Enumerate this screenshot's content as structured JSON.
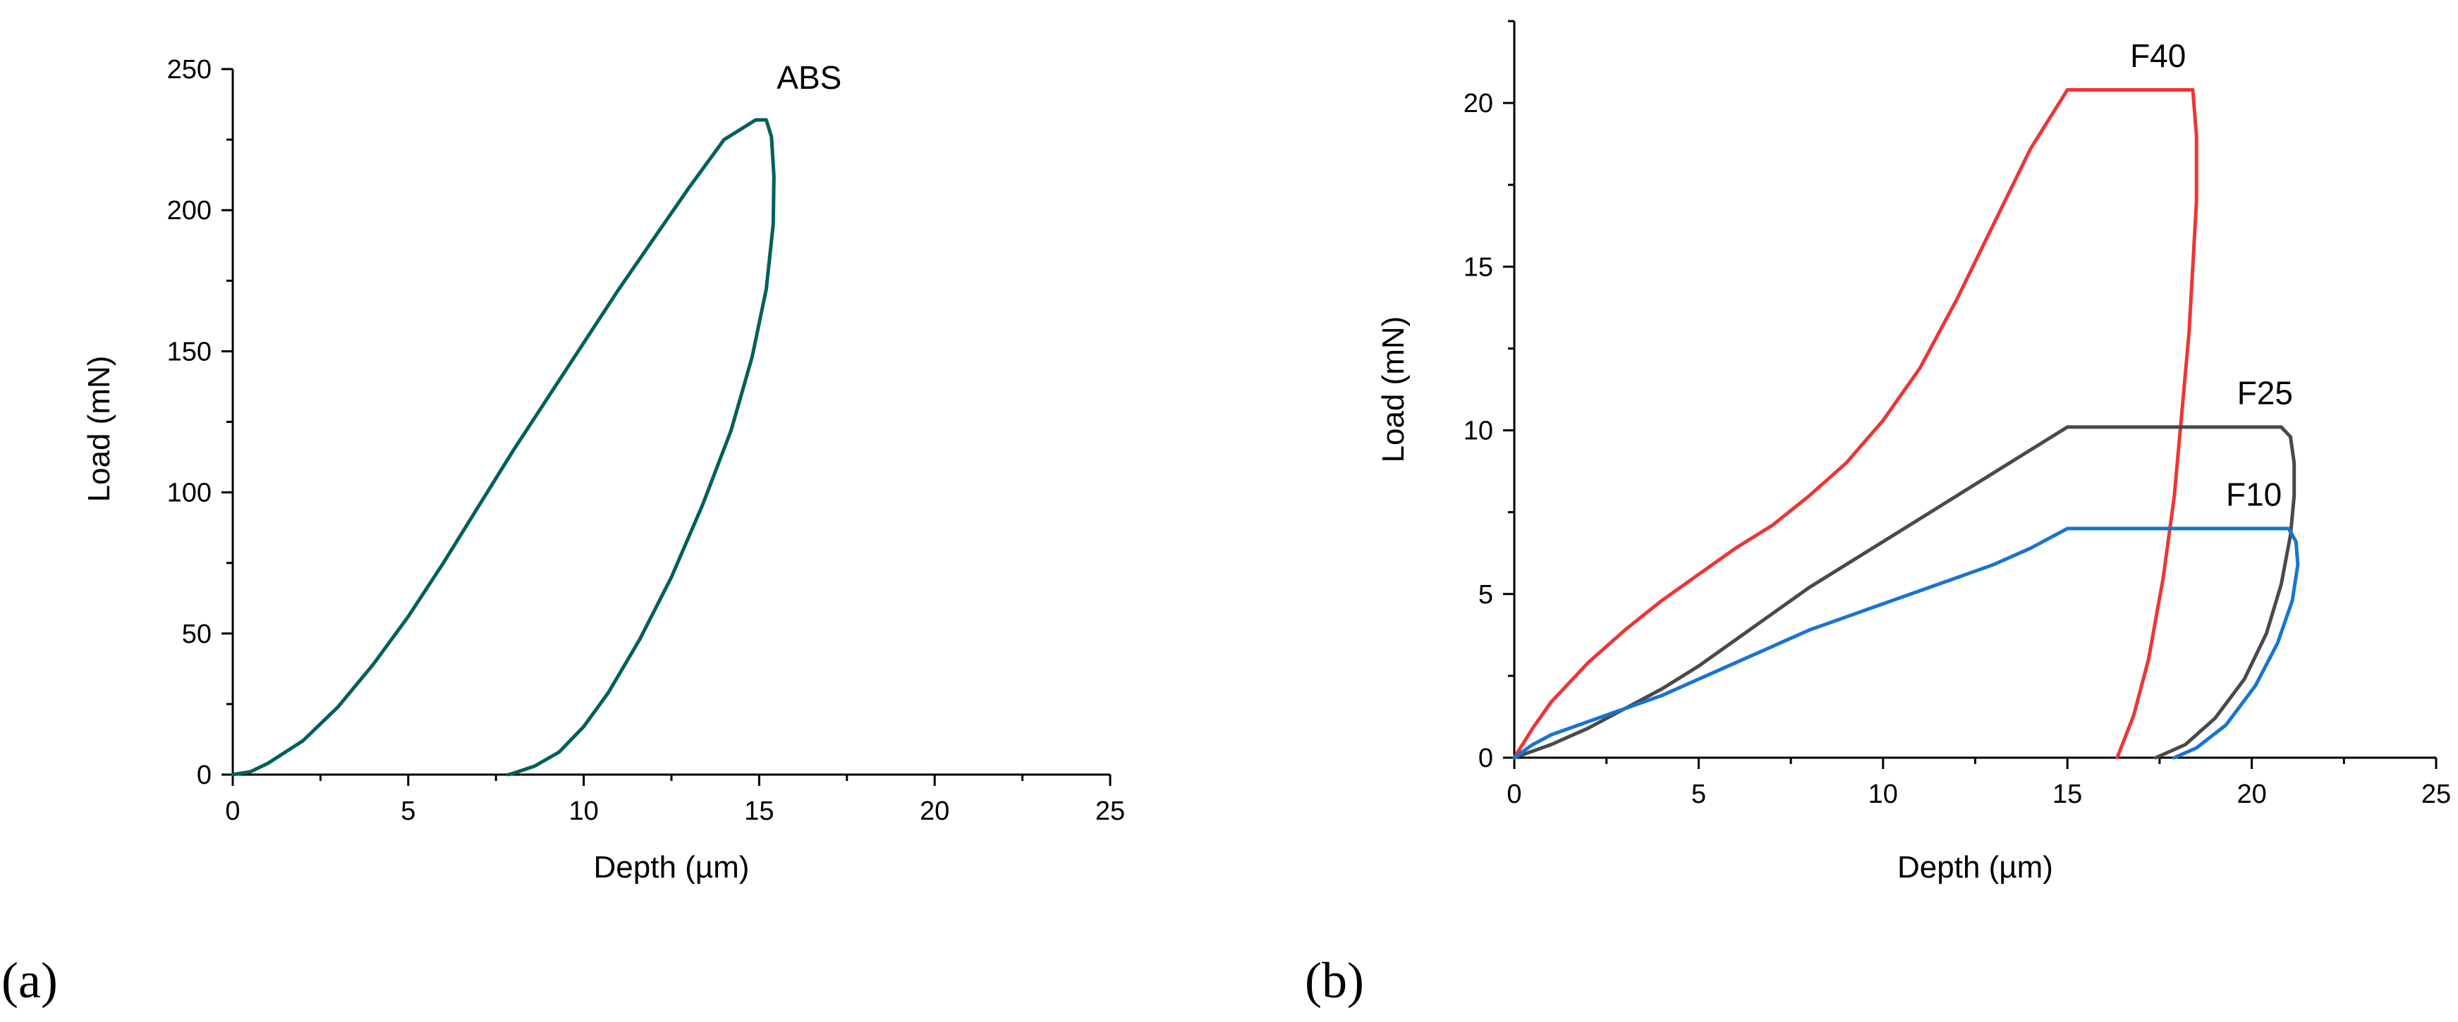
{
  "chart_data": [
    {
      "id": "a",
      "panel_label": "(a)",
      "type": "line",
      "xlabel": "Depth (µm)",
      "ylabel": "Load (mN)",
      "xlim": [
        0,
        25
      ],
      "ylim": [
        0,
        250
      ],
      "xticks": [
        0,
        5,
        10,
        15,
        20,
        25
      ],
      "xtick_labels": [
        "0",
        "5",
        "10",
        "15",
        "20",
        "25"
      ],
      "yticks": [
        0,
        50,
        100,
        150,
        200,
        250
      ],
      "ytick_labels": [
        "0",
        "50",
        "100",
        "150",
        "200",
        "250"
      ],
      "grid": false,
      "series": [
        {
          "name": "ABS",
          "color": "#00605C",
          "label_at": [
            15.5,
            243
          ],
          "points": [
            [
              0,
              0
            ],
            [
              0.5,
              1
            ],
            [
              1,
              4
            ],
            [
              2,
              12
            ],
            [
              3,
              24
            ],
            [
              4,
              39
            ],
            [
              5,
              56
            ],
            [
              6,
              75
            ],
            [
              7,
              95
            ],
            [
              8,
              115
            ],
            [
              9,
              134
            ],
            [
              10,
              153
            ],
            [
              11,
              172
            ],
            [
              12,
              190
            ],
            [
              13,
              208
            ],
            [
              14,
              225
            ],
            [
              14.9,
              232
            ],
            [
              15.2,
              232
            ],
            [
              15.35,
              226
            ],
            [
              15.42,
              212
            ],
            [
              15.4,
              195
            ],
            [
              15.2,
              172
            ],
            [
              14.8,
              148
            ],
            [
              14.2,
              122
            ],
            [
              13.4,
              96
            ],
            [
              12.5,
              70
            ],
            [
              11.6,
              48
            ],
            [
              10.7,
              29
            ],
            [
              10,
              17
            ],
            [
              9.3,
              8
            ],
            [
              8.6,
              3
            ],
            [
              8,
              0.5
            ],
            [
              7.85,
              0
            ]
          ]
        }
      ]
    },
    {
      "id": "b",
      "panel_label": "(b)",
      "type": "line",
      "xlabel": "Depth (µm)",
      "ylabel": "Load (mN)",
      "xlim": [
        0,
        25
      ],
      "ylim": [
        0,
        22.5
      ],
      "xticks": [
        0,
        5,
        10,
        15,
        20,
        25
      ],
      "xtick_labels": [
        "0",
        "5",
        "10",
        "15",
        "20",
        "25"
      ],
      "yticks": [
        0,
        5,
        10,
        15,
        20
      ],
      "ytick_labels": [
        "0",
        "5",
        "10",
        "15",
        "20"
      ],
      "grid": false,
      "series": [
        {
          "name": "F40",
          "color": "#EE3535",
          "label_at": [
            16.7,
            21.1
          ],
          "points": [
            [
              0,
              0
            ],
            [
              0.5,
              0.9
            ],
            [
              1,
              1.7
            ],
            [
              2,
              2.9
            ],
            [
              3,
              3.9
            ],
            [
              4,
              4.8
            ],
            [
              5,
              5.6
            ],
            [
              6,
              6.4
            ],
            [
              7,
              7.1
            ],
            [
              8,
              8.0
            ],
            [
              9,
              9.0
            ],
            [
              10,
              10.3
            ],
            [
              11,
              11.9
            ],
            [
              12,
              14.0
            ],
            [
              13,
              16.3
            ],
            [
              14,
              18.6
            ],
            [
              15,
              20.4
            ],
            [
              18.4,
              20.4
            ],
            [
              18.5,
              19.0
            ],
            [
              18.5,
              17.0
            ],
            [
              18.4,
              15.0
            ],
            [
              18.3,
              13.0
            ],
            [
              18.1,
              10.5
            ],
            [
              17.9,
              8.0
            ],
            [
              17.6,
              5.5
            ],
            [
              17.2,
              3.0
            ],
            [
              16.8,
              1.3
            ],
            [
              16.35,
              0
            ]
          ]
        },
        {
          "name": "F25",
          "color": "#4A4A4A",
          "label_at": [
            19.6,
            10.8
          ],
          "points": [
            [
              0,
              0
            ],
            [
              1,
              0.4
            ],
            [
              2,
              0.9
            ],
            [
              3,
              1.5
            ],
            [
              4,
              2.1
            ],
            [
              5,
              2.8
            ],
            [
              6,
              3.6
            ],
            [
              7,
              4.4
            ],
            [
              8,
              5.2
            ],
            [
              9,
              5.9
            ],
            [
              10,
              6.6
            ],
            [
              11,
              7.3
            ],
            [
              12,
              8.0
            ],
            [
              13,
              8.7
            ],
            [
              14,
              9.4
            ],
            [
              15,
              10.1
            ],
            [
              20.8,
              10.1
            ],
            [
              21.05,
              9.8
            ],
            [
              21.15,
              9.0
            ],
            [
              21.15,
              8.0
            ],
            [
              21.05,
              6.8
            ],
            [
              20.8,
              5.3
            ],
            [
              20.4,
              3.8
            ],
            [
              19.8,
              2.4
            ],
            [
              19.0,
              1.2
            ],
            [
              18.2,
              0.4
            ],
            [
              17.4,
              0
            ]
          ]
        },
        {
          "name": "F10",
          "color": "#1874D2",
          "label_at": [
            19.3,
            7.7
          ],
          "points": [
            [
              0,
              0
            ],
            [
              0.5,
              0.4
            ],
            [
              1,
              0.7
            ],
            [
              2,
              1.1
            ],
            [
              3,
              1.5
            ],
            [
              4,
              1.9
            ],
            [
              5,
              2.4
            ],
            [
              6,
              2.9
            ],
            [
              7,
              3.4
            ],
            [
              8,
              3.9
            ],
            [
              9,
              4.3
            ],
            [
              10,
              4.7
            ],
            [
              11,
              5.1
            ],
            [
              12,
              5.5
            ],
            [
              13,
              5.9
            ],
            [
              14,
              6.4
            ],
            [
              15,
              7.0
            ],
            [
              21.0,
              7.0
            ],
            [
              21.2,
              6.6
            ],
            [
              21.25,
              5.9
            ],
            [
              21.1,
              4.8
            ],
            [
              20.7,
              3.5
            ],
            [
              20.1,
              2.2
            ],
            [
              19.3,
              1.0
            ],
            [
              18.5,
              0.3
            ],
            [
              17.9,
              0
            ]
          ]
        }
      ]
    }
  ]
}
